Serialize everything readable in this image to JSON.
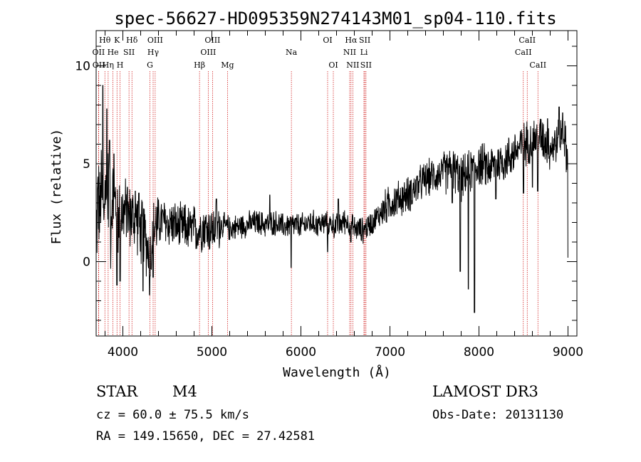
{
  "chart_data": {
    "type": "line",
    "title": "spec-56627-HD095359N274143M01_sp04-110.fits",
    "xlabel": "Wavelength (Å)",
    "ylabel": "Flux (relative)",
    "xlim": [
      3700,
      9100
    ],
    "ylim": [
      -3.8,
      11.8
    ],
    "xticks": [
      4000,
      5000,
      6000,
      7000,
      8000,
      9000
    ],
    "yticks": [
      0,
      5,
      10
    ],
    "line_color": "#000000",
    "marker_color": "#cc0000",
    "spectrum_anchors": [
      [
        3700,
        1.0
      ],
      [
        3720,
        3.5
      ],
      [
        3740,
        2.2
      ],
      [
        3760,
        4.0
      ],
      [
        3780,
        2.0
      ],
      [
        3800,
        3.8
      ],
      [
        3820,
        2.4
      ],
      [
        3840,
        4.2
      ],
      [
        3860,
        1.6
      ],
      [
        3880,
        3.6
      ],
      [
        3900,
        2.4
      ],
      [
        3920,
        3.2
      ],
      [
        3950,
        2.3
      ],
      [
        3980,
        3.0
      ],
      [
        4000,
        2.4
      ],
      [
        4030,
        2.6
      ],
      [
        4060,
        2.2
      ],
      [
        4100,
        2.4
      ],
      [
        4130,
        2.0
      ],
      [
        4160,
        2.2
      ],
      [
        4200,
        1.4
      ],
      [
        4230,
        1.6
      ],
      [
        4260,
        1.0
      ],
      [
        4290,
        0.6
      ],
      [
        4310,
        0.2
      ],
      [
        4330,
        1.2
      ],
      [
        4360,
        1.8
      ],
      [
        4400,
        2.0
      ],
      [
        4450,
        2.1
      ],
      [
        4500,
        1.9
      ],
      [
        4550,
        2.0
      ],
      [
        4600,
        1.8
      ],
      [
        4650,
        1.7
      ],
      [
        4700,
        1.8
      ],
      [
        4750,
        1.6
      ],
      [
        4800,
        1.7
      ],
      [
        4850,
        1.6
      ],
      [
        4900,
        1.8
      ],
      [
        5000,
        1.6
      ],
      [
        5100,
        1.9
      ],
      [
        5200,
        1.7
      ],
      [
        5300,
        1.8
      ],
      [
        5400,
        1.9
      ],
      [
        5500,
        2.0
      ],
      [
        5600,
        1.9
      ],
      [
        5700,
        2.0
      ],
      [
        5800,
        1.8
      ],
      [
        5900,
        1.9
      ],
      [
        6000,
        1.8
      ],
      [
        6100,
        2.0
      ],
      [
        6200,
        1.9
      ],
      [
        6300,
        2.0
      ],
      [
        6400,
        1.8
      ],
      [
        6500,
        2.1
      ],
      [
        6600,
        1.7
      ],
      [
        6700,
        1.6
      ],
      [
        6800,
        2.0
      ],
      [
        6900,
        2.5
      ],
      [
        7000,
        3.0
      ],
      [
        7100,
        3.2
      ],
      [
        7200,
        3.4
      ],
      [
        7300,
        3.8
      ],
      [
        7400,
        4.2
      ],
      [
        7500,
        4.4
      ],
      [
        7600,
        4.5
      ],
      [
        7700,
        4.8
      ],
      [
        7800,
        4.2
      ],
      [
        7900,
        4.6
      ],
      [
        8000,
        5.0
      ],
      [
        8100,
        4.8
      ],
      [
        8200,
        5.0
      ],
      [
        8300,
        5.2
      ],
      [
        8400,
        5.6
      ],
      [
        8500,
        6.0
      ],
      [
        8600,
        6.2
      ],
      [
        8700,
        6.4
      ],
      [
        8800,
        5.8
      ],
      [
        8900,
        6.2
      ],
      [
        8950,
        6.6
      ],
      [
        9000,
        5.0
      ]
    ],
    "spectrum_dips": [
      [
        3934,
        -1.2
      ],
      [
        3968,
        -1.0
      ],
      [
        4226,
        -1.5
      ],
      [
        4300,
        -1.7
      ],
      [
        4340,
        -0.8
      ],
      [
        5890,
        -0.3
      ],
      [
        6300,
        0.5
      ],
      [
        6560,
        1.0
      ],
      [
        7700,
        3.0
      ],
      [
        7790,
        -0.5
      ],
      [
        7880,
        -1.4
      ],
      [
        7950,
        -2.6
      ],
      [
        8190,
        3.2
      ],
      [
        8500,
        3.5
      ],
      [
        8600,
        3.8
      ],
      [
        8660,
        3.6
      ],
      [
        9000,
        0.2
      ]
    ],
    "spectrum_peaks": [
      [
        3775,
        9.0
      ],
      [
        3820,
        7.8
      ],
      [
        3850,
        6.2
      ],
      [
        3900,
        5.5
      ],
      [
        4050,
        3.8
      ],
      [
        4140,
        3.6
      ],
      [
        4180,
        3.5
      ],
      [
        5050,
        3.2
      ],
      [
        5650,
        3.4
      ],
      [
        6420,
        3.2
      ],
      [
        8770,
        7.3
      ],
      [
        8900,
        7.9
      ],
      [
        8940,
        7.6
      ]
    ],
    "markers": [
      {
        "label": "Hθ",
        "wavelength": 3798,
        "row": 1
      },
      {
        "label": "K",
        "wavelength": 3934,
        "row": 1
      },
      {
        "label": "Hδ",
        "wavelength": 4102,
        "row": 1
      },
      {
        "label": "OIII",
        "wavelength": 4363,
        "row": 1
      },
      {
        "label": "OIII",
        "wavelength": 5007,
        "row": 1
      },
      {
        "label": "OI",
        "wavelength": 6300,
        "row": 1
      },
      {
        "label": "Hα",
        "wavelength": 6563,
        "row": 1
      },
      {
        "label": "SII",
        "wavelength": 6717,
        "row": 1
      },
      {
        "label": "CaII",
        "wavelength": 8542,
        "row": 1
      },
      {
        "label": "OII",
        "wavelength": 3727,
        "row": 2
      },
      {
        "label": "He",
        "wavelength": 3889,
        "row": 2
      },
      {
        "label": "SII",
        "wavelength": 4069,
        "row": 2
      },
      {
        "label": "Hγ",
        "wavelength": 4340,
        "row": 2
      },
      {
        "label": "OIII",
        "wavelength": 4959,
        "row": 2
      },
      {
        "label": "Na",
        "wavelength": 5893,
        "row": 2
      },
      {
        "label": "NII",
        "wavelength": 6548,
        "row": 2
      },
      {
        "label": "Li",
        "wavelength": 6708,
        "row": 2
      },
      {
        "label": "CaII",
        "wavelength": 8498,
        "row": 2
      },
      {
        "label": "OII",
        "wavelength": 3729,
        "row": 3
      },
      {
        "label": "Hη",
        "wavelength": 3835,
        "row": 3
      },
      {
        "label": "H",
        "wavelength": 3968,
        "row": 3
      },
      {
        "label": "G",
        "wavelength": 4304,
        "row": 3
      },
      {
        "label": "Hβ",
        "wavelength": 4861,
        "row": 3
      },
      {
        "label": "Mg",
        "wavelength": 5175,
        "row": 3
      },
      {
        "label": "OI",
        "wavelength": 6364,
        "row": 3
      },
      {
        "label": "NII",
        "wavelength": 6583,
        "row": 3
      },
      {
        "label": "SII",
        "wavelength": 6731,
        "row": 3
      },
      {
        "label": "CaII",
        "wavelength": 8662,
        "row": 3
      }
    ]
  },
  "info": {
    "object_type": "STAR",
    "subclass": "M4",
    "survey": "LAMOST DR3",
    "cz": "cz = 60.0 ± 75.5 km/s",
    "obs_date": "Obs-Date: 20131130",
    "coordinates": "RA = 149.15650, DEC =  27.42581"
  }
}
